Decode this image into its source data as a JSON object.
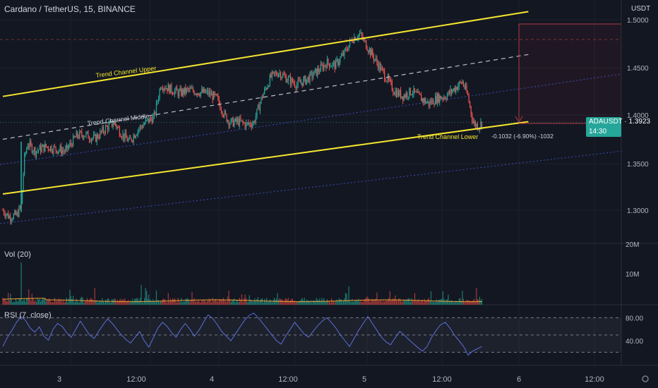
{
  "header": {
    "symbol_title": "Cardano / TetherUS, 15, BINANCE"
  },
  "price_axis": {
    "currency": "USDT",
    "ticks": [
      "1.5000",
      "1.4500",
      "1.4000",
      "1.3500",
      "1.3000"
    ]
  },
  "price_tag": {
    "symbol": "ADAUSDT",
    "price": "1.3923",
    "countdown": "14:30"
  },
  "volume_pane": {
    "label": "Vol (20)",
    "ticks": [
      "20M",
      "10M"
    ]
  },
  "rsi_pane": {
    "label": "RSI (7, close)",
    "ticks": [
      "80.00",
      "40.00"
    ],
    "overbought": 80,
    "oversold": 20
  },
  "time_axis": {
    "ticks": [
      "3",
      "12:00",
      "4",
      "12:00",
      "5",
      "12:00",
      "6",
      "12:00"
    ]
  },
  "annotations": {
    "upper": "Trend Channel Upper",
    "middle": "Trend Channel Middle",
    "lower": "Trend Channel Lower",
    "measure": "-0.1032 (-6.90%) -1032"
  },
  "colors": {
    "up": "#26a69a",
    "down": "#ef5350",
    "channel": "#f5e52f",
    "middle": "#b2b5be",
    "rsi": "#5b6fd8",
    "vol_ma": "#f0a330",
    "background": "#131722",
    "grid": "#1e222d"
  },
  "chart_data": {
    "type": "candlestick",
    "symbol": "ADAUSDT",
    "interval": "15",
    "y_range": [
      1.27,
      1.51
    ],
    "close_path": [
      [
        0,
        1.3
      ],
      [
        6,
        1.293
      ],
      [
        13,
        1.295
      ],
      [
        17,
        1.305
      ],
      [
        20,
        1.355
      ],
      [
        23,
        1.37
      ],
      [
        30,
        1.362
      ],
      [
        40,
        1.367
      ],
      [
        50,
        1.364
      ],
      [
        58,
        1.362
      ],
      [
        68,
        1.378
      ],
      [
        75,
        1.38
      ],
      [
        85,
        1.375
      ],
      [
        95,
        1.386
      ],
      [
        103,
        1.392
      ],
      [
        110,
        1.38
      ],
      [
        117,
        1.372
      ],
      [
        125,
        1.385
      ],
      [
        132,
        1.392
      ],
      [
        140,
        1.398
      ],
      [
        146,
        1.432
      ],
      [
        155,
        1.427
      ],
      [
        163,
        1.423
      ],
      [
        172,
        1.426
      ],
      [
        182,
        1.424
      ],
      [
        190,
        1.423
      ],
      [
        198,
        1.417
      ],
      [
        205,
        1.4
      ],
      [
        210,
        1.392
      ],
      [
        218,
        1.393
      ],
      [
        225,
        1.39
      ],
      [
        232,
        1.392
      ],
      [
        240,
        1.42
      ],
      [
        248,
        1.44
      ],
      [
        255,
        1.445
      ],
      [
        263,
        1.438
      ],
      [
        272,
        1.432
      ],
      [
        282,
        1.438
      ],
      [
        292,
        1.447
      ],
      [
        300,
        1.455
      ],
      [
        307,
        1.452
      ],
      [
        316,
        1.465
      ],
      [
        323,
        1.48
      ],
      [
        330,
        1.485
      ],
      [
        338,
        1.47
      ],
      [
        346,
        1.455
      ],
      [
        354,
        1.44
      ],
      [
        362,
        1.425
      ],
      [
        370,
        1.42
      ],
      [
        378,
        1.425
      ],
      [
        386,
        1.418
      ],
      [
        394,
        1.412
      ],
      [
        402,
        1.418
      ],
      [
        410,
        1.42
      ],
      [
        418,
        1.428
      ],
      [
        425,
        1.435
      ],
      [
        430,
        1.42
      ],
      [
        435,
        1.392
      ],
      [
        440,
        1.388
      ],
      [
        443,
        1.392
      ]
    ],
    "channel": {
      "upper": [
        [
          0,
          1.4195
        ],
        [
          486,
          1.5085
        ]
      ],
      "middle": [
        [
          0,
          1.3745
        ],
        [
          486,
          1.4635
        ]
      ],
      "lower": [
        [
          0,
          1.317
        ],
        [
          486,
          1.393
        ]
      ]
    },
    "measure": {
      "change": -0.1032,
      "percent": -6.9,
      "from": 1.4953,
      "to": 1.3921
    },
    "volume": {
      "ylim": [
        0,
        20
      ],
      "unit": "M",
      "spikes": {
        "17": 13.8,
        "24": 5.0,
        "85": 5.5,
        "128": 6.5,
        "132": 5.5,
        "133": 4.5,
        "236": 2.5,
        "320": 6.0,
        "346": 4.0,
        "438": 5.5
      }
    },
    "rsi": {
      "ylim": [
        0,
        100
      ],
      "levels": [
        20,
        50,
        80
      ],
      "values": [
        30,
        46,
        58,
        72,
        82,
        75,
        62,
        55,
        64,
        48,
        41,
        60,
        70,
        65,
        54,
        46,
        60,
        74,
        62,
        50,
        44,
        56,
        68,
        78,
        70,
        60,
        50,
        42,
        36,
        46,
        56,
        40,
        29,
        45,
        62,
        72,
        65,
        54,
        46,
        60,
        70,
        60,
        48,
        58,
        72,
        85,
        79,
        68,
        56,
        48,
        40,
        52,
        64,
        76,
        84,
        88,
        80,
        70,
        60,
        50,
        40,
        34,
        48,
        60,
        72,
        62,
        52,
        46,
        56,
        66,
        74,
        80,
        72,
        62,
        50,
        40,
        30,
        44,
        58,
        70,
        82,
        70,
        58,
        46,
        38,
        33,
        45,
        56,
        50,
        42,
        35,
        28,
        22,
        30,
        46,
        58,
        68,
        72,
        62,
        50,
        40,
        30,
        15,
        22,
        26,
        30
      ]
    }
  }
}
